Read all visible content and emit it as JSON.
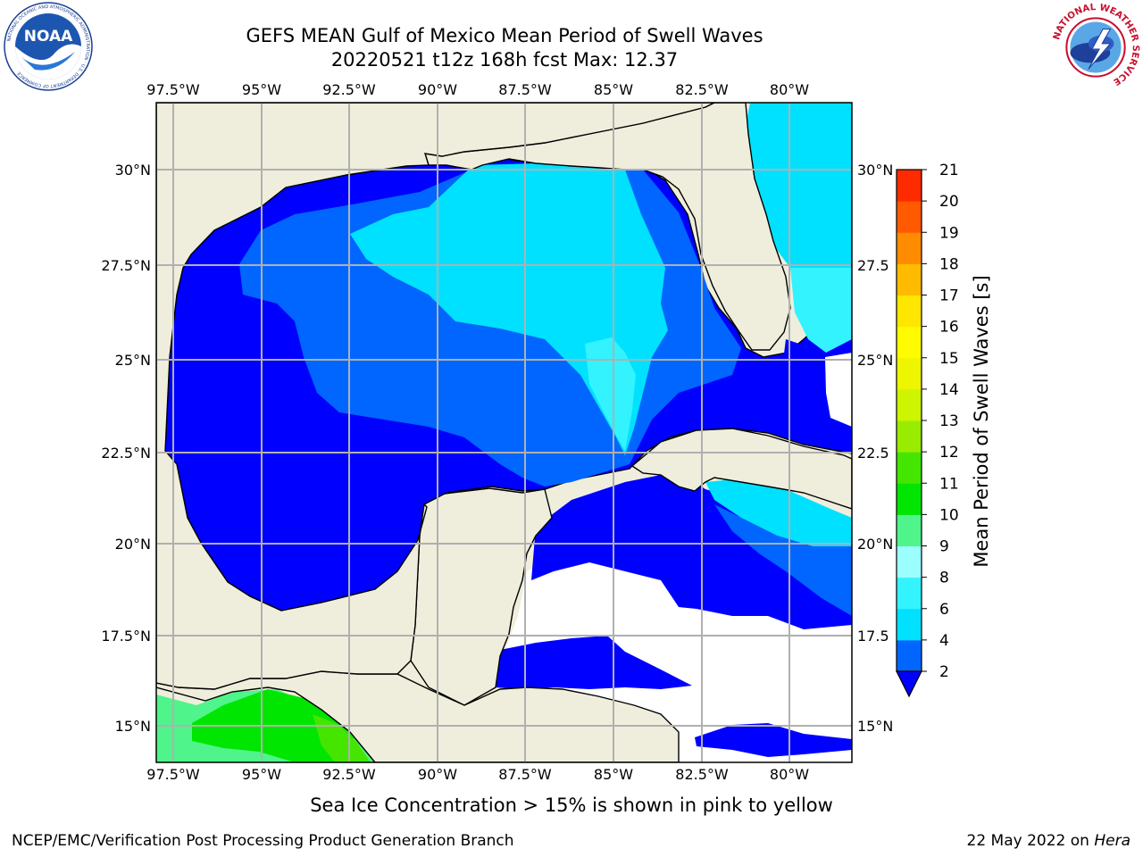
{
  "header": {
    "title_line1": "GEFS MEAN Gulf of Mexico Mean Period of Swell Waves",
    "title_line2": "20220521 t12z 168h fcst   Max: 12.37"
  },
  "logos": {
    "left": {
      "name": "NOAA",
      "ring_text": "NATIONAL OCEANIC AND ATMOSPHERIC ADMINISTRATION · U.S. DEPARTMENT OF COMMERCE"
    },
    "right": {
      "ring_text": "NATIONAL WEATHER SERVICE"
    }
  },
  "map": {
    "lon_ticks": [
      "97.5°W",
      "95°W",
      "92.5°W",
      "90°W",
      "87.5°W",
      "85°W",
      "82.5°W",
      "80°W"
    ],
    "lat_ticks_left": [
      "30°N",
      "27.5°N",
      "25°N",
      "22.5°N",
      "20°N",
      "17.5°N",
      "15°N"
    ],
    "lat_ticks_right": [
      "30°N",
      "27.5",
      "25°N",
      "22.5",
      "20°N",
      "17.5",
      "15°N"
    ],
    "colors": {
      "land": "#efeedc",
      "ocean_land_border": "#000000",
      "grid": "#b0b0b0"
    }
  },
  "colorbar": {
    "label": "Mean Period of Swell Waves [s]",
    "ticks": [
      "2",
      "4",
      "6",
      "8",
      "9",
      "10",
      "11",
      "12",
      "13",
      "14",
      "15",
      "16",
      "17",
      "18",
      "19",
      "20",
      "21"
    ],
    "extend": "min",
    "colors": [
      "#0066ff",
      "#00e1ff",
      "#33f3ff",
      "#9cffff",
      "#4ff58a",
      "#00e600",
      "#44e600",
      "#99ec00",
      "#cdf400",
      "#eef500",
      "#fffb00",
      "#ffe600",
      "#ffbb00",
      "#ff8c00",
      "#ff5a00",
      "#ff2b00"
    ],
    "under_color": "#0000ff"
  },
  "footer": {
    "ice_note": "Sea Ice Concentration > 15% is shown in pink to yellow",
    "left": "NCEP/EMC/Verification Post Processing Product Generation Branch",
    "right_prefix": "22 May 2022 on",
    "right_host": "Hera"
  }
}
